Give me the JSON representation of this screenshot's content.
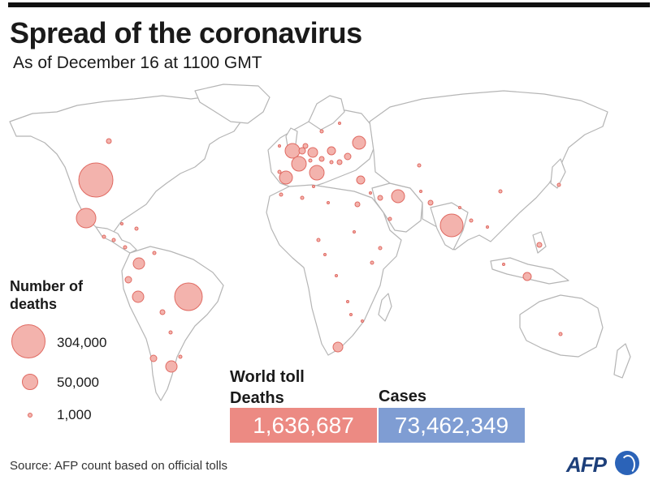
{
  "title": "Spread of the coronavirus",
  "subtitle": "As of December 16 at  1100 GMT",
  "legend": {
    "title": "Number of deaths",
    "items": [
      {
        "label": "304,000",
        "value": 304000
      },
      {
        "label": "50,000",
        "value": 50000
      },
      {
        "label": "1,000",
        "value": 1000
      }
    ]
  },
  "world_toll": {
    "title": "World toll",
    "deaths_label": "Deaths",
    "deaths_value": "1,636,687",
    "cases_label": "Cases",
    "cases_value": "73,462,349"
  },
  "source": "Source: AFP count based on official tolls",
  "logo": "AFP",
  "colors": {
    "bubble_fill": "#f3b3ad",
    "bubble_stroke": "#e06a62",
    "deaths_box": "#ec8a83",
    "cases_box": "#7f9dd3",
    "land_outline": "#b5b5b5"
  }
}
